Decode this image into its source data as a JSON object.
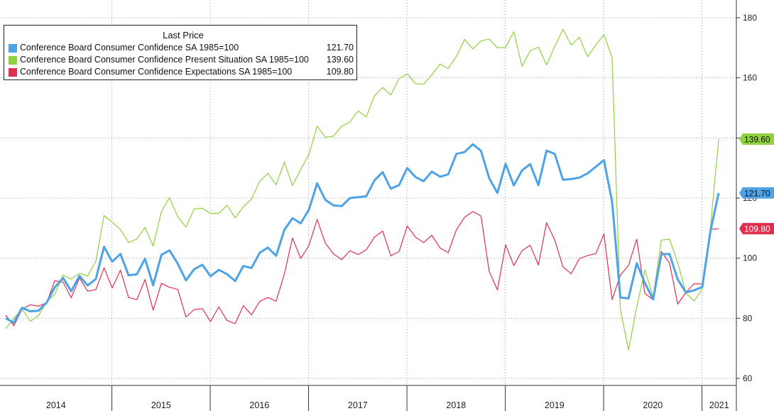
{
  "chart_data": {
    "type": "line",
    "title": "",
    "legend_title": "Last Price",
    "legend_position": "top-left",
    "xlabel": "",
    "ylabel": "",
    "ylim": [
      60,
      185
    ],
    "yticks": [
      "60",
      "80",
      "100",
      "120",
      "140",
      "160",
      "180"
    ],
    "year_labels": [
      "2014",
      "2015",
      "2016",
      "2017",
      "2018",
      "2019",
      "2020",
      "2021"
    ],
    "x_start": 2013.92,
    "x_step": 0.08333,
    "series": [
      {
        "name": "Conference Board Consumer Confidence SA 1985=100",
        "last": "121.70",
        "color": "#4da3e6",
        "values": [
          80.0,
          78.5,
          83.5,
          82.3,
          82.5,
          85.2,
          90.3,
          93.4,
          89.0,
          94.1,
          90.9,
          93.1,
          103.8,
          98.8,
          101.4,
          94.3,
          94.6,
          99.8,
          91.0,
          101.1,
          102.6,
          98.1,
          92.6,
          96.3,
          97.8,
          94.0,
          96.1,
          94.7,
          92.4,
          97.4,
          96.7,
          101.8,
          103.5,
          100.8,
          109.4,
          113.3,
          111.6,
          116.1,
          124.9,
          119.4,
          117.6,
          117.3,
          120.0,
          120.3,
          120.6,
          125.9,
          128.6,
          123.1,
          124.3,
          130.0,
          127.0,
          125.6,
          128.8,
          127.1,
          127.9,
          134.7,
          135.3,
          137.9,
          135.7,
          126.6,
          121.7,
          131.4,
          124.2,
          129.2,
          131.3,
          124.3,
          135.8,
          134.7,
          126.1,
          126.3,
          126.8,
          128.2,
          130.4,
          132.6,
          118.8,
          86.9,
          86.6,
          98.3,
          91.7,
          86.3,
          101.3,
          101.4,
          92.9,
          88.6,
          89.3,
          90.4,
          109.0,
          121.7
        ]
      },
      {
        "name": "Conference Board Consumer Confidence Present Situation SA 1985=100",
        "last": "139.60",
        "color": "#8fd13f",
        "values": [
          76.5,
          80.0,
          83.0,
          79.0,
          80.8,
          85.5,
          88.0,
          94.4,
          93.0,
          95.0,
          94.0,
          99.0,
          114.2,
          112.0,
          109.5,
          105.2,
          106.4,
          110.2,
          104.0,
          115.5,
          120.1,
          113.8,
          110.3,
          116.4,
          116.6,
          114.9,
          114.9,
          117.6,
          113.4,
          117.1,
          119.7,
          125.6,
          128.2,
          124.4,
          132.0,
          124.1,
          129.6,
          134.4,
          143.9,
          140.3,
          140.6,
          143.9,
          145.3,
          149.0,
          147.0,
          154.0,
          156.8,
          154.3,
          159.8,
          161.3,
          158.1,
          157.9,
          161.0,
          164.6,
          163.1,
          167.2,
          172.8,
          169.6,
          172.3,
          172.9,
          170.0,
          170.1,
          175.4,
          163.8,
          169.0,
          170.2,
          164.3,
          170.5,
          176.2,
          170.9,
          173.5,
          167.0,
          170.9,
          174.4,
          166.7,
          83.0,
          69.4,
          83.8,
          96.0,
          87.2,
          106.0,
          106.3,
          98.6,
          88.4,
          85.7,
          89.7,
          110.1,
          139.6
        ]
      },
      {
        "name": "Conference Board Consumer Confidence Expectations SA 1985=100",
        "last": "109.80",
        "color": "#e0304f",
        "values": [
          81.0,
          77.5,
          83.0,
          84.5,
          84.0,
          85.2,
          92.5,
          92.0,
          86.8,
          93.4,
          89.0,
          89.5,
          96.8,
          90.1,
          96.0,
          86.9,
          86.2,
          92.9,
          82.7,
          91.6,
          90.3,
          89.6,
          80.4,
          82.9,
          83.2,
          78.9,
          83.8,
          79.3,
          78.2,
          84.2,
          81.2,
          85.6,
          86.9,
          85.7,
          94.7,
          106.7,
          99.9,
          104.2,
          112.9,
          105.0,
          101.4,
          99.5,
          102.5,
          101.2,
          102.8,
          107.0,
          109.0,
          100.8,
          102.2,
          110.7,
          107.0,
          105.2,
          107.6,
          103.4,
          101.8,
          109.5,
          113.6,
          115.5,
          114.0,
          95.6,
          89.4,
          104.4,
          97.5,
          102.5,
          104.3,
          97.7,
          111.8,
          106.0,
          97.1,
          94.8,
          99.8,
          100.9,
          101.5,
          108.0,
          86.2,
          94.3,
          97.6,
          106.3,
          88.2,
          86.2,
          102.2,
          98.4,
          84.7,
          88.6,
          91.5,
          91.4,
          109.6,
          109.8
        ]
      }
    ],
    "markers": [
      {
        "name": "Conference Board Consumer Confidence Present Situation SA 1985=100",
        "value": 139.6,
        "label": "139.60",
        "color": "#8fd13f"
      },
      {
        "name": "Conference Board Consumer Confidence SA 1985=100",
        "value": 121.7,
        "label": "121.70",
        "color": "#4da3e6"
      },
      {
        "name": "Conference Board Consumer Confidence Expectations SA 1985=100",
        "value": 109.8,
        "label": "109.80",
        "color": "#e0304f"
      }
    ]
  }
}
